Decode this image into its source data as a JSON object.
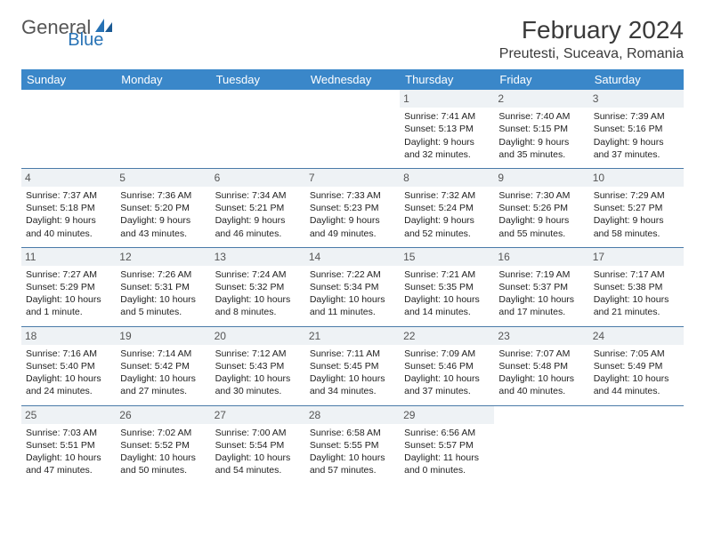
{
  "brand": {
    "text1": "General",
    "text2": "Blue"
  },
  "title": {
    "month": "February 2024",
    "location": "Preutesti, Suceava, Romania"
  },
  "colors": {
    "header_bg": "#3a87c9",
    "header_text": "#ffffff",
    "daynum_bg": "#eef2f5",
    "row_border": "#4a7aa8",
    "brand_gray": "#555555",
    "brand_blue": "#2772b5"
  },
  "weekdays": [
    "Sunday",
    "Monday",
    "Tuesday",
    "Wednesday",
    "Thursday",
    "Friday",
    "Saturday"
  ],
  "weeks": [
    [
      null,
      null,
      null,
      null,
      {
        "n": "1",
        "sr": "Sunrise: 7:41 AM",
        "ss": "Sunset: 5:13 PM",
        "d1": "Daylight: 9 hours",
        "d2": "and 32 minutes."
      },
      {
        "n": "2",
        "sr": "Sunrise: 7:40 AM",
        "ss": "Sunset: 5:15 PM",
        "d1": "Daylight: 9 hours",
        "d2": "and 35 minutes."
      },
      {
        "n": "3",
        "sr": "Sunrise: 7:39 AM",
        "ss": "Sunset: 5:16 PM",
        "d1": "Daylight: 9 hours",
        "d2": "and 37 minutes."
      }
    ],
    [
      {
        "n": "4",
        "sr": "Sunrise: 7:37 AM",
        "ss": "Sunset: 5:18 PM",
        "d1": "Daylight: 9 hours",
        "d2": "and 40 minutes."
      },
      {
        "n": "5",
        "sr": "Sunrise: 7:36 AM",
        "ss": "Sunset: 5:20 PM",
        "d1": "Daylight: 9 hours",
        "d2": "and 43 minutes."
      },
      {
        "n": "6",
        "sr": "Sunrise: 7:34 AM",
        "ss": "Sunset: 5:21 PM",
        "d1": "Daylight: 9 hours",
        "d2": "and 46 minutes."
      },
      {
        "n": "7",
        "sr": "Sunrise: 7:33 AM",
        "ss": "Sunset: 5:23 PM",
        "d1": "Daylight: 9 hours",
        "d2": "and 49 minutes."
      },
      {
        "n": "8",
        "sr": "Sunrise: 7:32 AM",
        "ss": "Sunset: 5:24 PM",
        "d1": "Daylight: 9 hours",
        "d2": "and 52 minutes."
      },
      {
        "n": "9",
        "sr": "Sunrise: 7:30 AM",
        "ss": "Sunset: 5:26 PM",
        "d1": "Daylight: 9 hours",
        "d2": "and 55 minutes."
      },
      {
        "n": "10",
        "sr": "Sunrise: 7:29 AM",
        "ss": "Sunset: 5:27 PM",
        "d1": "Daylight: 9 hours",
        "d2": "and 58 minutes."
      }
    ],
    [
      {
        "n": "11",
        "sr": "Sunrise: 7:27 AM",
        "ss": "Sunset: 5:29 PM",
        "d1": "Daylight: 10 hours",
        "d2": "and 1 minute."
      },
      {
        "n": "12",
        "sr": "Sunrise: 7:26 AM",
        "ss": "Sunset: 5:31 PM",
        "d1": "Daylight: 10 hours",
        "d2": "and 5 minutes."
      },
      {
        "n": "13",
        "sr": "Sunrise: 7:24 AM",
        "ss": "Sunset: 5:32 PM",
        "d1": "Daylight: 10 hours",
        "d2": "and 8 minutes."
      },
      {
        "n": "14",
        "sr": "Sunrise: 7:22 AM",
        "ss": "Sunset: 5:34 PM",
        "d1": "Daylight: 10 hours",
        "d2": "and 11 minutes."
      },
      {
        "n": "15",
        "sr": "Sunrise: 7:21 AM",
        "ss": "Sunset: 5:35 PM",
        "d1": "Daylight: 10 hours",
        "d2": "and 14 minutes."
      },
      {
        "n": "16",
        "sr": "Sunrise: 7:19 AM",
        "ss": "Sunset: 5:37 PM",
        "d1": "Daylight: 10 hours",
        "d2": "and 17 minutes."
      },
      {
        "n": "17",
        "sr": "Sunrise: 7:17 AM",
        "ss": "Sunset: 5:38 PM",
        "d1": "Daylight: 10 hours",
        "d2": "and 21 minutes."
      }
    ],
    [
      {
        "n": "18",
        "sr": "Sunrise: 7:16 AM",
        "ss": "Sunset: 5:40 PM",
        "d1": "Daylight: 10 hours",
        "d2": "and 24 minutes."
      },
      {
        "n": "19",
        "sr": "Sunrise: 7:14 AM",
        "ss": "Sunset: 5:42 PM",
        "d1": "Daylight: 10 hours",
        "d2": "and 27 minutes."
      },
      {
        "n": "20",
        "sr": "Sunrise: 7:12 AM",
        "ss": "Sunset: 5:43 PM",
        "d1": "Daylight: 10 hours",
        "d2": "and 30 minutes."
      },
      {
        "n": "21",
        "sr": "Sunrise: 7:11 AM",
        "ss": "Sunset: 5:45 PM",
        "d1": "Daylight: 10 hours",
        "d2": "and 34 minutes."
      },
      {
        "n": "22",
        "sr": "Sunrise: 7:09 AM",
        "ss": "Sunset: 5:46 PM",
        "d1": "Daylight: 10 hours",
        "d2": "and 37 minutes."
      },
      {
        "n": "23",
        "sr": "Sunrise: 7:07 AM",
        "ss": "Sunset: 5:48 PM",
        "d1": "Daylight: 10 hours",
        "d2": "and 40 minutes."
      },
      {
        "n": "24",
        "sr": "Sunrise: 7:05 AM",
        "ss": "Sunset: 5:49 PM",
        "d1": "Daylight: 10 hours",
        "d2": "and 44 minutes."
      }
    ],
    [
      {
        "n": "25",
        "sr": "Sunrise: 7:03 AM",
        "ss": "Sunset: 5:51 PM",
        "d1": "Daylight: 10 hours",
        "d2": "and 47 minutes."
      },
      {
        "n": "26",
        "sr": "Sunrise: 7:02 AM",
        "ss": "Sunset: 5:52 PM",
        "d1": "Daylight: 10 hours",
        "d2": "and 50 minutes."
      },
      {
        "n": "27",
        "sr": "Sunrise: 7:00 AM",
        "ss": "Sunset: 5:54 PM",
        "d1": "Daylight: 10 hours",
        "d2": "and 54 minutes."
      },
      {
        "n": "28",
        "sr": "Sunrise: 6:58 AM",
        "ss": "Sunset: 5:55 PM",
        "d1": "Daylight: 10 hours",
        "d2": "and 57 minutes."
      },
      {
        "n": "29",
        "sr": "Sunrise: 6:56 AM",
        "ss": "Sunset: 5:57 PM",
        "d1": "Daylight: 11 hours",
        "d2": "and 0 minutes."
      },
      null,
      null
    ]
  ]
}
